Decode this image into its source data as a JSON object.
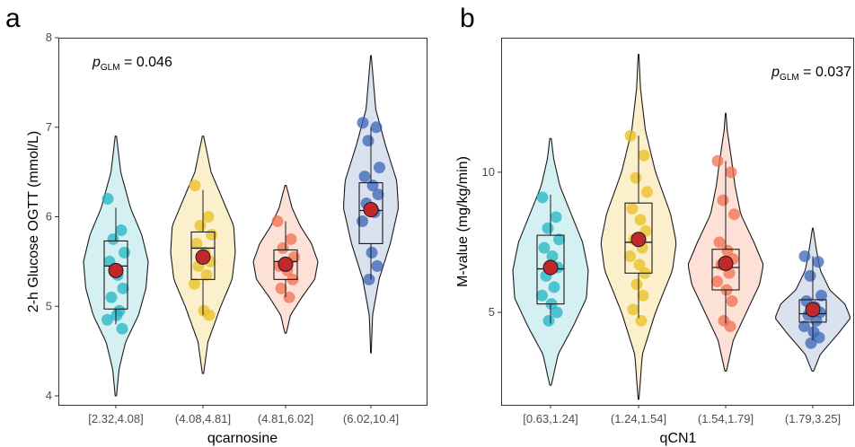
{
  "chart_data": [
    {
      "type": "violin",
      "panel_label": "a",
      "xlabel": "qcarnosine",
      "ylabel": "2-h Glucose OGTT (mmol/L)",
      "ylim": [
        3.9,
        8.0
      ],
      "yticks": [
        4,
        5,
        6,
        7,
        8
      ],
      "annotation": {
        "p_symbol": "p",
        "p_subscript": "GLM",
        "p_text": " = 0.046",
        "position": "top-left"
      },
      "categories": [
        "[2.32,4.08]",
        "(4.08,4.81]",
        "(4.81,6.02]",
        "(6.02,10.4]"
      ],
      "colors": [
        "#1fb5c4",
        "#e8c020",
        "#f07050",
        "#3a64b5"
      ],
      "fill_colors": [
        "#d5f0f3",
        "#fcf0cc",
        "#fde0d6",
        "#dae2f0"
      ],
      "mean_color": "#c0282c",
      "groups": [
        {
          "category": "[2.32,4.08]",
          "mean": 5.4,
          "box": {
            "whisker_low": 4.8,
            "q1": 4.97,
            "median": 5.45,
            "q3": 5.73,
            "whisker_high": 6.1
          },
          "violin": {
            "min": 4.0,
            "max": 6.9,
            "profile": [
              [
                4.0,
                0.02
              ],
              [
                4.3,
                0.1
              ],
              [
                4.6,
                0.3
              ],
              [
                4.9,
                0.7
              ],
              [
                5.2,
                0.93
              ],
              [
                5.5,
                1.0
              ],
              [
                5.8,
                0.8
              ],
              [
                6.1,
                0.45
              ],
              [
                6.5,
                0.15
              ],
              [
                6.9,
                0.02
              ]
            ]
          },
          "points": [
            6.2,
            5.85,
            5.75,
            5.6,
            5.5,
            5.35,
            5.2,
            5.1,
            4.95,
            4.85,
            4.9,
            4.75
          ]
        },
        {
          "category": "(4.08,4.81]",
          "mean": 5.55,
          "box": {
            "whisker_low": 4.9,
            "q1": 5.3,
            "median": 5.65,
            "q3": 5.83,
            "whisker_high": 6.3
          },
          "violin": {
            "min": 4.25,
            "max": 6.9,
            "profile": [
              [
                4.25,
                0.02
              ],
              [
                4.6,
                0.15
              ],
              [
                5.0,
                0.55
              ],
              [
                5.3,
                0.9
              ],
              [
                5.6,
                1.0
              ],
              [
                5.9,
                0.95
              ],
              [
                6.2,
                0.6
              ],
              [
                6.5,
                0.25
              ],
              [
                6.9,
                0.02
              ]
            ]
          },
          "points": [
            6.35,
            6.0,
            5.9,
            5.8,
            5.7,
            5.6,
            5.5,
            5.45,
            5.35,
            5.25,
            4.95,
            4.9
          ]
        },
        {
          "category": "(4.81,6.02]",
          "mean": 5.47,
          "box": {
            "whisker_low": 5.1,
            "q1": 5.3,
            "median": 5.5,
            "q3": 5.63,
            "whisker_high": 5.95
          },
          "violin": {
            "min": 4.7,
            "max": 6.35,
            "profile": [
              [
                4.7,
                0.02
              ],
              [
                4.9,
                0.15
              ],
              [
                5.1,
                0.5
              ],
              [
                5.3,
                0.9
              ],
              [
                5.5,
                1.0
              ],
              [
                5.7,
                0.8
              ],
              [
                5.9,
                0.45
              ],
              [
                6.1,
                0.2
              ],
              [
                6.35,
                0.02
              ]
            ]
          },
          "points": [
            5.95,
            5.75,
            5.65,
            5.55,
            5.45,
            5.4,
            5.3,
            5.2,
            5.1
          ]
        },
        {
          "category": "(6.02,10.4]",
          "mean": 6.08,
          "box": {
            "whisker_low": 5.3,
            "q1": 5.7,
            "median": 6.07,
            "q3": 6.38,
            "whisker_high": 7.0
          },
          "violin": {
            "min": 4.48,
            "max": 7.8,
            "profile": [
              [
                4.48,
                0.01
              ],
              [
                4.9,
                0.05
              ],
              [
                5.3,
                0.25
              ],
              [
                5.7,
                0.6
              ],
              [
                6.1,
                0.85
              ],
              [
                6.4,
                0.8
              ],
              [
                6.8,
                0.45
              ],
              [
                7.2,
                0.15
              ],
              [
                7.8,
                0.01
              ]
            ]
          },
          "points": [
            7.05,
            7.0,
            6.85,
            6.55,
            6.45,
            6.35,
            6.25,
            6.15,
            6.05,
            5.95,
            5.6,
            5.45,
            5.3
          ]
        }
      ]
    },
    {
      "type": "violin",
      "panel_label": "b",
      "xlabel": "qCN1",
      "ylabel": "M-value (mg/kg/min)",
      "ylim": [
        1.7,
        14.8
      ],
      "yticks": [
        5,
        10
      ],
      "annotation": {
        "p_symbol": "p",
        "p_subscript": "GLM",
        "p_text": " = 0.037",
        "position": "top-right"
      },
      "categories": [
        "[0.63,1.24]",
        "(1.24,1.54]",
        "(1.54,1.79]",
        "(1.79,3.25]"
      ],
      "colors": [
        "#1fb5c4",
        "#e8c020",
        "#f07050",
        "#3a64b5"
      ],
      "fill_colors": [
        "#d5f0f3",
        "#fcf0cc",
        "#fde0d6",
        "#dae2f0"
      ],
      "mean_color": "#c0282c",
      "groups": [
        {
          "category": "[0.63,1.24]",
          "mean": 6.6,
          "box": {
            "whisker_low": 4.6,
            "q1": 5.3,
            "median": 6.55,
            "q3": 7.75,
            "whisker_high": 9.2
          },
          "violin": {
            "min": 2.4,
            "max": 11.2,
            "profile": [
              [
                2.4,
                0.02
              ],
              [
                3.5,
                0.2
              ],
              [
                4.5,
                0.6
              ],
              [
                5.5,
                0.95
              ],
              [
                6.5,
                1.0
              ],
              [
                7.5,
                0.85
              ],
              [
                8.5,
                0.55
              ],
              [
                9.5,
                0.25
              ],
              [
                10.5,
                0.08
              ],
              [
                11.2,
                0.02
              ]
            ]
          },
          "points": [
            9.1,
            8.4,
            8.0,
            7.6,
            7.3,
            7.0,
            6.6,
            6.3,
            5.9,
            5.6,
            5.3,
            5.0,
            4.7
          ]
        },
        {
          "category": "(1.24,1.54]",
          "mean": 7.6,
          "box": {
            "whisker_low": 4.8,
            "q1": 6.4,
            "median": 7.5,
            "q3": 8.9,
            "whisker_high": 11.3
          },
          "violin": {
            "min": 1.9,
            "max": 14.2,
            "profile": [
              [
                1.9,
                0.01
              ],
              [
                3.5,
                0.1
              ],
              [
                5.0,
                0.45
              ],
              [
                6.5,
                0.9
              ],
              [
                7.5,
                1.0
              ],
              [
                8.5,
                0.85
              ],
              [
                10.0,
                0.45
              ],
              [
                11.5,
                0.18
              ],
              [
                13.0,
                0.05
              ],
              [
                14.2,
                0.01
              ]
            ]
          },
          "points": [
            11.3,
            10.6,
            9.8,
            9.3,
            8.7,
            8.3,
            7.9,
            7.6,
            7.3,
            7.0,
            6.7,
            6.4,
            6.0,
            5.6,
            5.1,
            4.7
          ]
        },
        {
          "category": "(1.54,1.79]",
          "mean": 6.75,
          "box": {
            "whisker_low": 4.6,
            "q1": 5.8,
            "median": 6.6,
            "q3": 7.25,
            "whisker_high": 10.4
          },
          "violin": {
            "min": 2.9,
            "max": 12.1,
            "profile": [
              [
                2.9,
                0.02
              ],
              [
                4.0,
                0.2
              ],
              [
                5.0,
                0.55
              ],
              [
                6.0,
                0.9
              ],
              [
                6.7,
                1.0
              ],
              [
                7.5,
                0.75
              ],
              [
                8.5,
                0.4
              ],
              [
                9.5,
                0.25
              ],
              [
                10.5,
                0.15
              ],
              [
                11.5,
                0.04
              ],
              [
                12.1,
                0.01
              ]
            ]
          },
          "points": [
            10.4,
            10.0,
            9.0,
            8.5,
            7.5,
            7.2,
            6.9,
            6.7,
            6.4,
            6.1,
            5.8,
            5.4,
            4.7,
            4.5
          ]
        },
        {
          "category": "(1.79,3.25]",
          "mean": 5.1,
          "box": {
            "whisker_low": 4.0,
            "q1": 4.65,
            "median": 4.95,
            "q3": 5.45,
            "whisker_high": 7.0
          },
          "violin": {
            "min": 2.9,
            "max": 8.0,
            "profile": [
              [
                2.9,
                0.02
              ],
              [
                3.5,
                0.2
              ],
              [
                4.2,
                0.65
              ],
              [
                4.8,
                1.0
              ],
              [
                5.3,
                0.85
              ],
              [
                5.8,
                0.45
              ],
              [
                6.5,
                0.2
              ],
              [
                7.2,
                0.1
              ],
              [
                8.0,
                0.01
              ]
            ]
          },
          "points": [
            7.0,
            6.8,
            6.3,
            5.6,
            5.4,
            5.2,
            5.0,
            4.9,
            4.7,
            4.5,
            4.3,
            4.1,
            3.9
          ]
        }
      ]
    }
  ]
}
